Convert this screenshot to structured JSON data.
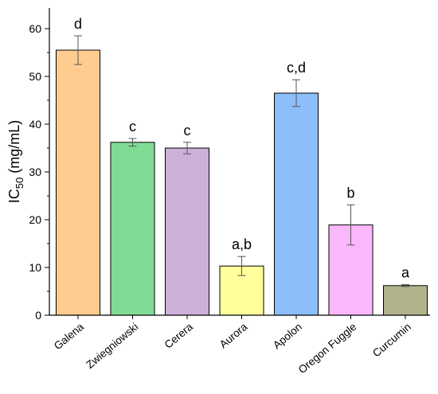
{
  "chart_data": {
    "type": "bar",
    "categories": [
      "Galena",
      "Zwiegniowski",
      "Cerera",
      "Aurora",
      "Apolon",
      "Oregon Fuggle",
      "Curcumin"
    ],
    "values": [
      55.5,
      36.2,
      35.0,
      10.3,
      46.5,
      18.9,
      6.2
    ],
    "errors": [
      3.0,
      0.8,
      1.2,
      2.0,
      2.8,
      4.2,
      0.2
    ],
    "significance": [
      "d",
      "c",
      "c",
      "a,b",
      "c,d",
      "b",
      "a"
    ],
    "colors": [
      "#FFCC8F",
      "#80DC94",
      "#CDB0D8",
      "#FFFF9C",
      "#8CBEFA",
      "#FBB7FC",
      "#B2B38B"
    ],
    "ylabel_main": "IC",
    "ylabel_sub": "50",
    "ylabel_unit": " (mg/mL)",
    "xlabel": "",
    "ylim": [
      0,
      65
    ],
    "yticks": [
      0,
      10,
      20,
      30,
      40,
      50,
      60
    ],
    "grid": false
  }
}
